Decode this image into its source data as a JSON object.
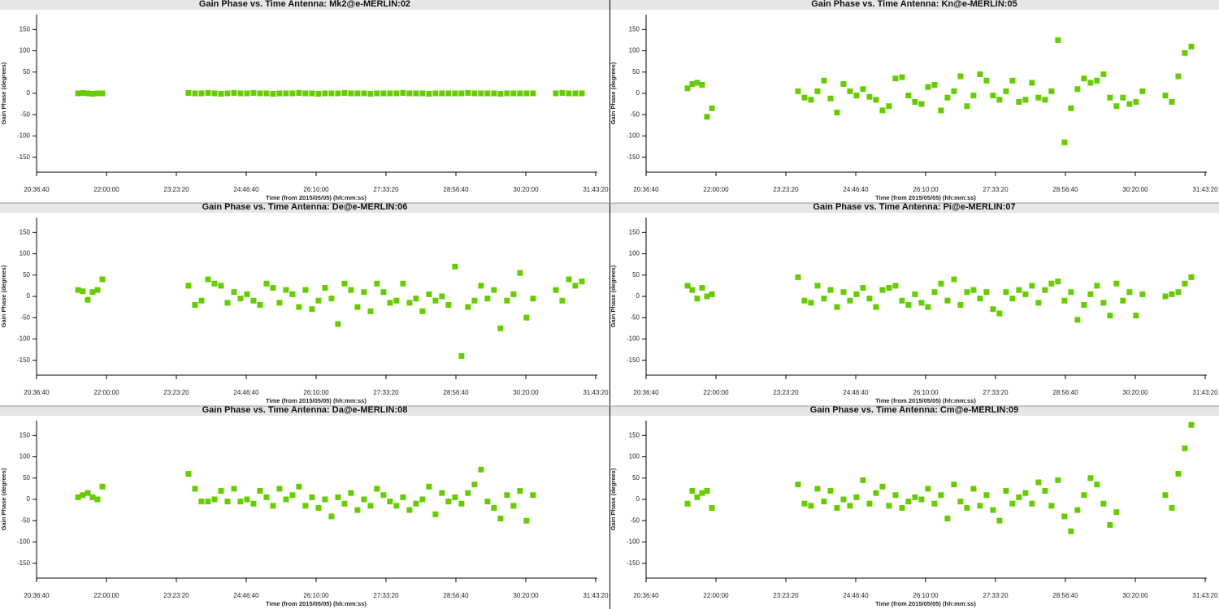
{
  "chart_data": [
    {
      "type": "scatter",
      "title": "Gain Phase vs. Time Antenna: Mk2@e-MERLIN:02",
      "x_label": "Time (from 2015/05/05) (hh:mm:ss)",
      "y_label": "Gain Phase (degrees)",
      "xlim": [
        74200,
        114200
      ],
      "ylim": [
        -185,
        185
      ],
      "xticks": [
        {
          "value": 74200,
          "label": "20:36:40"
        },
        {
          "value": 79200,
          "label": "22:00:00"
        },
        {
          "value": 84200,
          "label": "23:23:20"
        },
        {
          "value": 89200,
          "label": "24:46:40"
        },
        {
          "value": 94200,
          "label": "26:10:00"
        },
        {
          "value": 99200,
          "label": "27:33:20"
        },
        {
          "value": 104200,
          "label": "28:56:40"
        },
        {
          "value": 109200,
          "label": "30:20:00"
        },
        {
          "value": 114200,
          "label": "31:43:20"
        }
      ],
      "yticks": [
        -150,
        -100,
        -50,
        0,
        50,
        100,
        150
      ],
      "x": [
        77170,
        77510,
        77860,
        78210,
        78560,
        78910,
        85070,
        85535,
        86000,
        86465,
        86930,
        87395,
        87860,
        88325,
        88790,
        89255,
        89720,
        90185,
        90650,
        91115,
        91580,
        92045,
        92510,
        92975,
        93440,
        93905,
        94370,
        94835,
        95300,
        95765,
        96230,
        96695,
        97160,
        97625,
        98090,
        98555,
        99020,
        99485,
        99950,
        100415,
        100880,
        101345,
        101810,
        102275,
        102740,
        103205,
        103670,
        104135,
        104600,
        105065,
        105530,
        105995,
        106460,
        106925,
        107390,
        107855,
        108320,
        108785,
        109250,
        109715,
        111350,
        111815,
        112280,
        112745,
        113210
      ],
      "series": [
        {
          "color": "#66cc00",
          "values": [
            0,
            1,
            0,
            -1,
            0,
            0,
            1,
            0,
            0,
            1,
            0,
            -1,
            0,
            1,
            0,
            0,
            1,
            0,
            0,
            -1,
            0,
            0,
            0,
            1,
            0,
            0,
            -1,
            0,
            0,
            0,
            1,
            0,
            0,
            0,
            -1,
            0,
            0,
            0,
            0,
            1,
            0,
            0,
            0,
            -1,
            0,
            0,
            0,
            0,
            0,
            1,
            0,
            0,
            0,
            0,
            -1,
            0,
            0,
            0,
            0,
            0,
            0,
            1,
            0,
            0,
            0
          ]
        }
      ]
    },
    {
      "type": "scatter",
      "title": "Gain Phase vs. Time Antenna: Kn@e-MERLIN:05",
      "x_label": "Time (from 2015/05/05) (hh:mm:ss)",
      "y_label": "Gain Phase (degrees)",
      "xlim": [
        74200,
        114200
      ],
      "ylim": [
        -185,
        185
      ],
      "xticks": [
        {
          "value": 74200,
          "label": "20:36:40"
        },
        {
          "value": 79200,
          "label": "22:00:00"
        },
        {
          "value": 84200,
          "label": "23:23:20"
        },
        {
          "value": 89200,
          "label": "24:46:40"
        },
        {
          "value": 94200,
          "label": "26:10:00"
        },
        {
          "value": 99200,
          "label": "27:33:20"
        },
        {
          "value": 104200,
          "label": "28:56:40"
        },
        {
          "value": 109200,
          "label": "30:20:00"
        },
        {
          "value": 114200,
          "label": "31:43:20"
        }
      ],
      "yticks": [
        -150,
        -100,
        -50,
        0,
        50,
        100,
        150
      ],
      "x": [
        77170,
        77510,
        77860,
        78210,
        78560,
        78910,
        85070,
        85535,
        86000,
        86465,
        86930,
        87395,
        87860,
        88325,
        88790,
        89255,
        89720,
        90185,
        90650,
        91115,
        91580,
        92045,
        92510,
        92975,
        93440,
        93905,
        94370,
        94835,
        95300,
        95765,
        96230,
        96695,
        97160,
        97625,
        98090,
        98555,
        99020,
        99485,
        99950,
        100415,
        100880,
        101345,
        101810,
        102275,
        102740,
        103205,
        103670,
        104135,
        104600,
        105065,
        105530,
        105995,
        106460,
        106925,
        107390,
        107855,
        108320,
        108785,
        109250,
        109715,
        111350,
        111815,
        112280,
        112745,
        113210
      ],
      "series": [
        {
          "color": "#66cc00",
          "values": [
            12,
            22,
            25,
            20,
            -55,
            -35,
            5,
            -10,
            -15,
            5,
            30,
            -12,
            -45,
            22,
            5,
            -5,
            10,
            -8,
            -15,
            -40,
            -30,
            35,
            38,
            -5,
            -20,
            -25,
            15,
            20,
            -40,
            -10,
            5,
            40,
            -30,
            -5,
            45,
            30,
            -5,
            -15,
            5,
            30,
            -20,
            -15,
            25,
            -10,
            -15,
            5,
            125,
            -115,
            -35,
            10,
            35,
            25,
            30,
            45,
            -10,
            -30,
            -10,
            -25,
            -20,
            5,
            -5,
            -20,
            40,
            95,
            110
          ]
        }
      ]
    },
    {
      "type": "scatter",
      "title": "Gain Phase vs. Time Antenna: De@e-MERLIN:06",
      "x_label": "Time (from 2015/05/05) (hh:mm:ss)",
      "y_label": "Gain Phase (degrees)",
      "xlim": [
        74200,
        114200
      ],
      "ylim": [
        -185,
        185
      ],
      "xticks": [
        {
          "value": 74200,
          "label": "20:36:40"
        },
        {
          "value": 79200,
          "label": "22:00:00"
        },
        {
          "value": 84200,
          "label": "23:23:20"
        },
        {
          "value": 89200,
          "label": "24:46:40"
        },
        {
          "value": 94200,
          "label": "26:10:00"
        },
        {
          "value": 99200,
          "label": "27:33:20"
        },
        {
          "value": 104200,
          "label": "28:56:40"
        },
        {
          "value": 109200,
          "label": "30:20:00"
        },
        {
          "value": 114200,
          "label": "31:43:20"
        }
      ],
      "yticks": [
        -150,
        -100,
        -50,
        0,
        50,
        100,
        150
      ],
      "x": [
        77170,
        77510,
        77860,
        78210,
        78560,
        78910,
        85070,
        85535,
        86000,
        86465,
        86930,
        87395,
        87860,
        88325,
        88790,
        89255,
        89720,
        90185,
        90650,
        91115,
        91580,
        92045,
        92510,
        92975,
        93440,
        93905,
        94370,
        94835,
        95300,
        95765,
        96230,
        96695,
        97160,
        97625,
        98090,
        98555,
        99020,
        99485,
        99950,
        100415,
        100880,
        101345,
        101810,
        102275,
        102740,
        103205,
        103670,
        104135,
        104600,
        105065,
        105530,
        105995,
        106460,
        106925,
        107390,
        107855,
        108320,
        108785,
        109250,
        109715,
        111350,
        111815,
        112280,
        112745,
        113210
      ],
      "series": [
        {
          "color": "#66cc00",
          "values": [
            15,
            12,
            -8,
            10,
            15,
            40,
            25,
            -20,
            -10,
            40,
            30,
            25,
            -15,
            10,
            -5,
            5,
            -10,
            -20,
            30,
            20,
            -15,
            15,
            5,
            -25,
            15,
            -30,
            -10,
            20,
            -5,
            -65,
            30,
            15,
            -25,
            10,
            -35,
            30,
            10,
            -15,
            -10,
            30,
            -15,
            -5,
            -35,
            5,
            -10,
            0,
            -20,
            70,
            -140,
            -25,
            -10,
            25,
            -5,
            15,
            -75,
            -10,
            5,
            55,
            -50,
            -5,
            15,
            -10,
            40,
            25,
            35
          ]
        }
      ]
    },
    {
      "type": "scatter",
      "title": "Gain Phase vs. Time Antenna: Pi@e-MERLIN:07",
      "x_label": "Time (from 2015/05/05) (hh:mm:ss)",
      "y_label": "Gain Phase (degrees)",
      "xlim": [
        74200,
        114200
      ],
      "ylim": [
        -185,
        185
      ],
      "xticks": [
        {
          "value": 74200,
          "label": "20:36:40"
        },
        {
          "value": 79200,
          "label": "22:00:00"
        },
        {
          "value": 84200,
          "label": "23:23:20"
        },
        {
          "value": 89200,
          "label": "24:46:40"
        },
        {
          "value": 94200,
          "label": "26:10:00"
        },
        {
          "value": 99200,
          "label": "27:33:20"
        },
        {
          "value": 104200,
          "label": "28:56:40"
        },
        {
          "value": 109200,
          "label": "30:20:00"
        },
        {
          "value": 114200,
          "label": "31:43:20"
        }
      ],
      "yticks": [
        -150,
        -100,
        -50,
        0,
        50,
        100,
        150
      ],
      "x": [
        77170,
        77510,
        77860,
        78210,
        78560,
        78910,
        85070,
        85535,
        86000,
        86465,
        86930,
        87395,
        87860,
        88325,
        88790,
        89255,
        89720,
        90185,
        90650,
        91115,
        91580,
        92045,
        92510,
        92975,
        93440,
        93905,
        94370,
        94835,
        95300,
        95765,
        96230,
        96695,
        97160,
        97625,
        98090,
        98555,
        99020,
        99485,
        99950,
        100415,
        100880,
        101345,
        101810,
        102275,
        102740,
        103205,
        103670,
        104135,
        104600,
        105065,
        105530,
        105995,
        106460,
        106925,
        107390,
        107855,
        108320,
        108785,
        109250,
        109715,
        111350,
        111815,
        112280,
        112745,
        113210
      ],
      "series": [
        {
          "color": "#66cc00",
          "values": [
            25,
            15,
            -5,
            20,
            0,
            5,
            45,
            -10,
            -15,
            25,
            -5,
            15,
            -25,
            10,
            -10,
            5,
            20,
            -5,
            -25,
            15,
            20,
            25,
            -10,
            -20,
            5,
            -15,
            -25,
            10,
            30,
            -10,
            40,
            -20,
            10,
            15,
            -5,
            10,
            -30,
            -40,
            10,
            -5,
            15,
            5,
            25,
            -15,
            15,
            30,
            35,
            -10,
            10,
            -55,
            -20,
            5,
            25,
            -15,
            -45,
            30,
            -10,
            10,
            -45,
            5,
            0,
            5,
            10,
            30,
            45
          ]
        }
      ]
    },
    {
      "type": "scatter",
      "title": "Gain Phase vs. Time Antenna: Da@e-MERLIN:08",
      "x_label": "Time (from 2015/05/05) (hh:mm:ss)",
      "y_label": "Gain Phase (degrees)",
      "xlim": [
        74200,
        114200
      ],
      "ylim": [
        -185,
        185
      ],
      "xticks": [
        {
          "value": 74200,
          "label": "20:36:40"
        },
        {
          "value": 79200,
          "label": "22:00:00"
        },
        {
          "value": 84200,
          "label": "23:23:20"
        },
        {
          "value": 89200,
          "label": "24:46:40"
        },
        {
          "value": 94200,
          "label": "26:10:00"
        },
        {
          "value": 99200,
          "label": "27:33:20"
        },
        {
          "value": 104200,
          "label": "28:56:40"
        },
        {
          "value": 109200,
          "label": "30:20:00"
        },
        {
          "value": 114200,
          "label": "31:43:20"
        }
      ],
      "yticks": [
        -150,
        -100,
        -50,
        0,
        50,
        100,
        150
      ],
      "x": [
        77170,
        77510,
        77860,
        78210,
        78560,
        78910,
        85070,
        85535,
        86000,
        86465,
        86930,
        87395,
        87860,
        88325,
        88790,
        89255,
        89720,
        90185,
        90650,
        91115,
        91580,
        92045,
        92510,
        92975,
        93440,
        93905,
        94370,
        94835,
        95300,
        95765,
        96230,
        96695,
        97160,
        97625,
        98090,
        98555,
        99020,
        99485,
        99950,
        100415,
        100880,
        101345,
        101810,
        102275,
        102740,
        103205,
        103670,
        104135,
        104600,
        105065,
        105530,
        105995,
        106460,
        106925,
        107390,
        107855,
        108320,
        108785,
        109250,
        109715,
        111350,
        111815,
        112280,
        112745,
        113210
      ],
      "series": [
        {
          "color": "#66cc00",
          "values": [
            5,
            10,
            15,
            5,
            0,
            30,
            60,
            25,
            -5,
            -5,
            0,
            20,
            -5,
            25,
            -5,
            0,
            -10,
            20,
            5,
            -15,
            25,
            0,
            10,
            30,
            -15,
            5,
            -20,
            0,
            -40,
            5,
            -10,
            15,
            -25,
            0,
            -15,
            25,
            10,
            -5,
            -15,
            5,
            -25,
            -10,
            0,
            30,
            -35,
            15,
            -5,
            5,
            -10,
            15,
            35,
            70,
            -5,
            -20,
            -45,
            10,
            -15,
            20,
            -50,
            10,
            null,
            null,
            null,
            null,
            null
          ]
        }
      ]
    },
    {
      "type": "scatter",
      "title": "Gain Phase vs. Time Antenna: Cm@e-MERLIN:09",
      "x_label": "Time (from 2015/05/05) (hh:mm:ss)",
      "y_label": "Gain Phase (degrees)",
      "xlim": [
        74200,
        114200
      ],
      "ylim": [
        -185,
        185
      ],
      "xticks": [
        {
          "value": 74200,
          "label": "20:36:40"
        },
        {
          "value": 79200,
          "label": "22:00:00"
        },
        {
          "value": 84200,
          "label": "23:23:20"
        },
        {
          "value": 89200,
          "label": "24:46:40"
        },
        {
          "value": 94200,
          "label": "26:10:00"
        },
        {
          "value": 99200,
          "label": "27:33:20"
        },
        {
          "value": 104200,
          "label": "28:56:40"
        },
        {
          "value": 109200,
          "label": "30:20:00"
        },
        {
          "value": 114200,
          "label": "31:43:20"
        }
      ],
      "yticks": [
        -150,
        -100,
        -50,
        0,
        50,
        100,
        150
      ],
      "x": [
        77170,
        77510,
        77860,
        78210,
        78560,
        78910,
        85070,
        85535,
        86000,
        86465,
        86930,
        87395,
        87860,
        88325,
        88790,
        89255,
        89720,
        90185,
        90650,
        91115,
        91580,
        92045,
        92510,
        92975,
        93440,
        93905,
        94370,
        94835,
        95300,
        95765,
        96230,
        96695,
        97160,
        97625,
        98090,
        98555,
        99020,
        99485,
        99950,
        100415,
        100880,
        101345,
        101810,
        102275,
        102740,
        103205,
        103670,
        104135,
        104600,
        105065,
        105530,
        105995,
        106460,
        106925,
        107390,
        107855,
        108320,
        108785,
        109250,
        109715,
        111350,
        111815,
        112280,
        112745,
        113210
      ],
      "series": [
        {
          "color": "#66cc00",
          "values": [
            -10,
            20,
            5,
            15,
            20,
            -20,
            35,
            -10,
            -15,
            25,
            -5,
            20,
            -20,
            0,
            -15,
            5,
            45,
            -10,
            15,
            30,
            -15,
            10,
            -20,
            -5,
            5,
            0,
            25,
            -10,
            10,
            -45,
            35,
            -5,
            -20,
            25,
            -15,
            10,
            -25,
            -50,
            20,
            -10,
            5,
            15,
            -10,
            40,
            20,
            -15,
            45,
            -40,
            -75,
            -25,
            10,
            50,
            35,
            -10,
            -60,
            -30,
            null,
            null,
            null,
            null,
            10,
            -20,
            60,
            120,
            175
          ]
        }
      ]
    }
  ]
}
